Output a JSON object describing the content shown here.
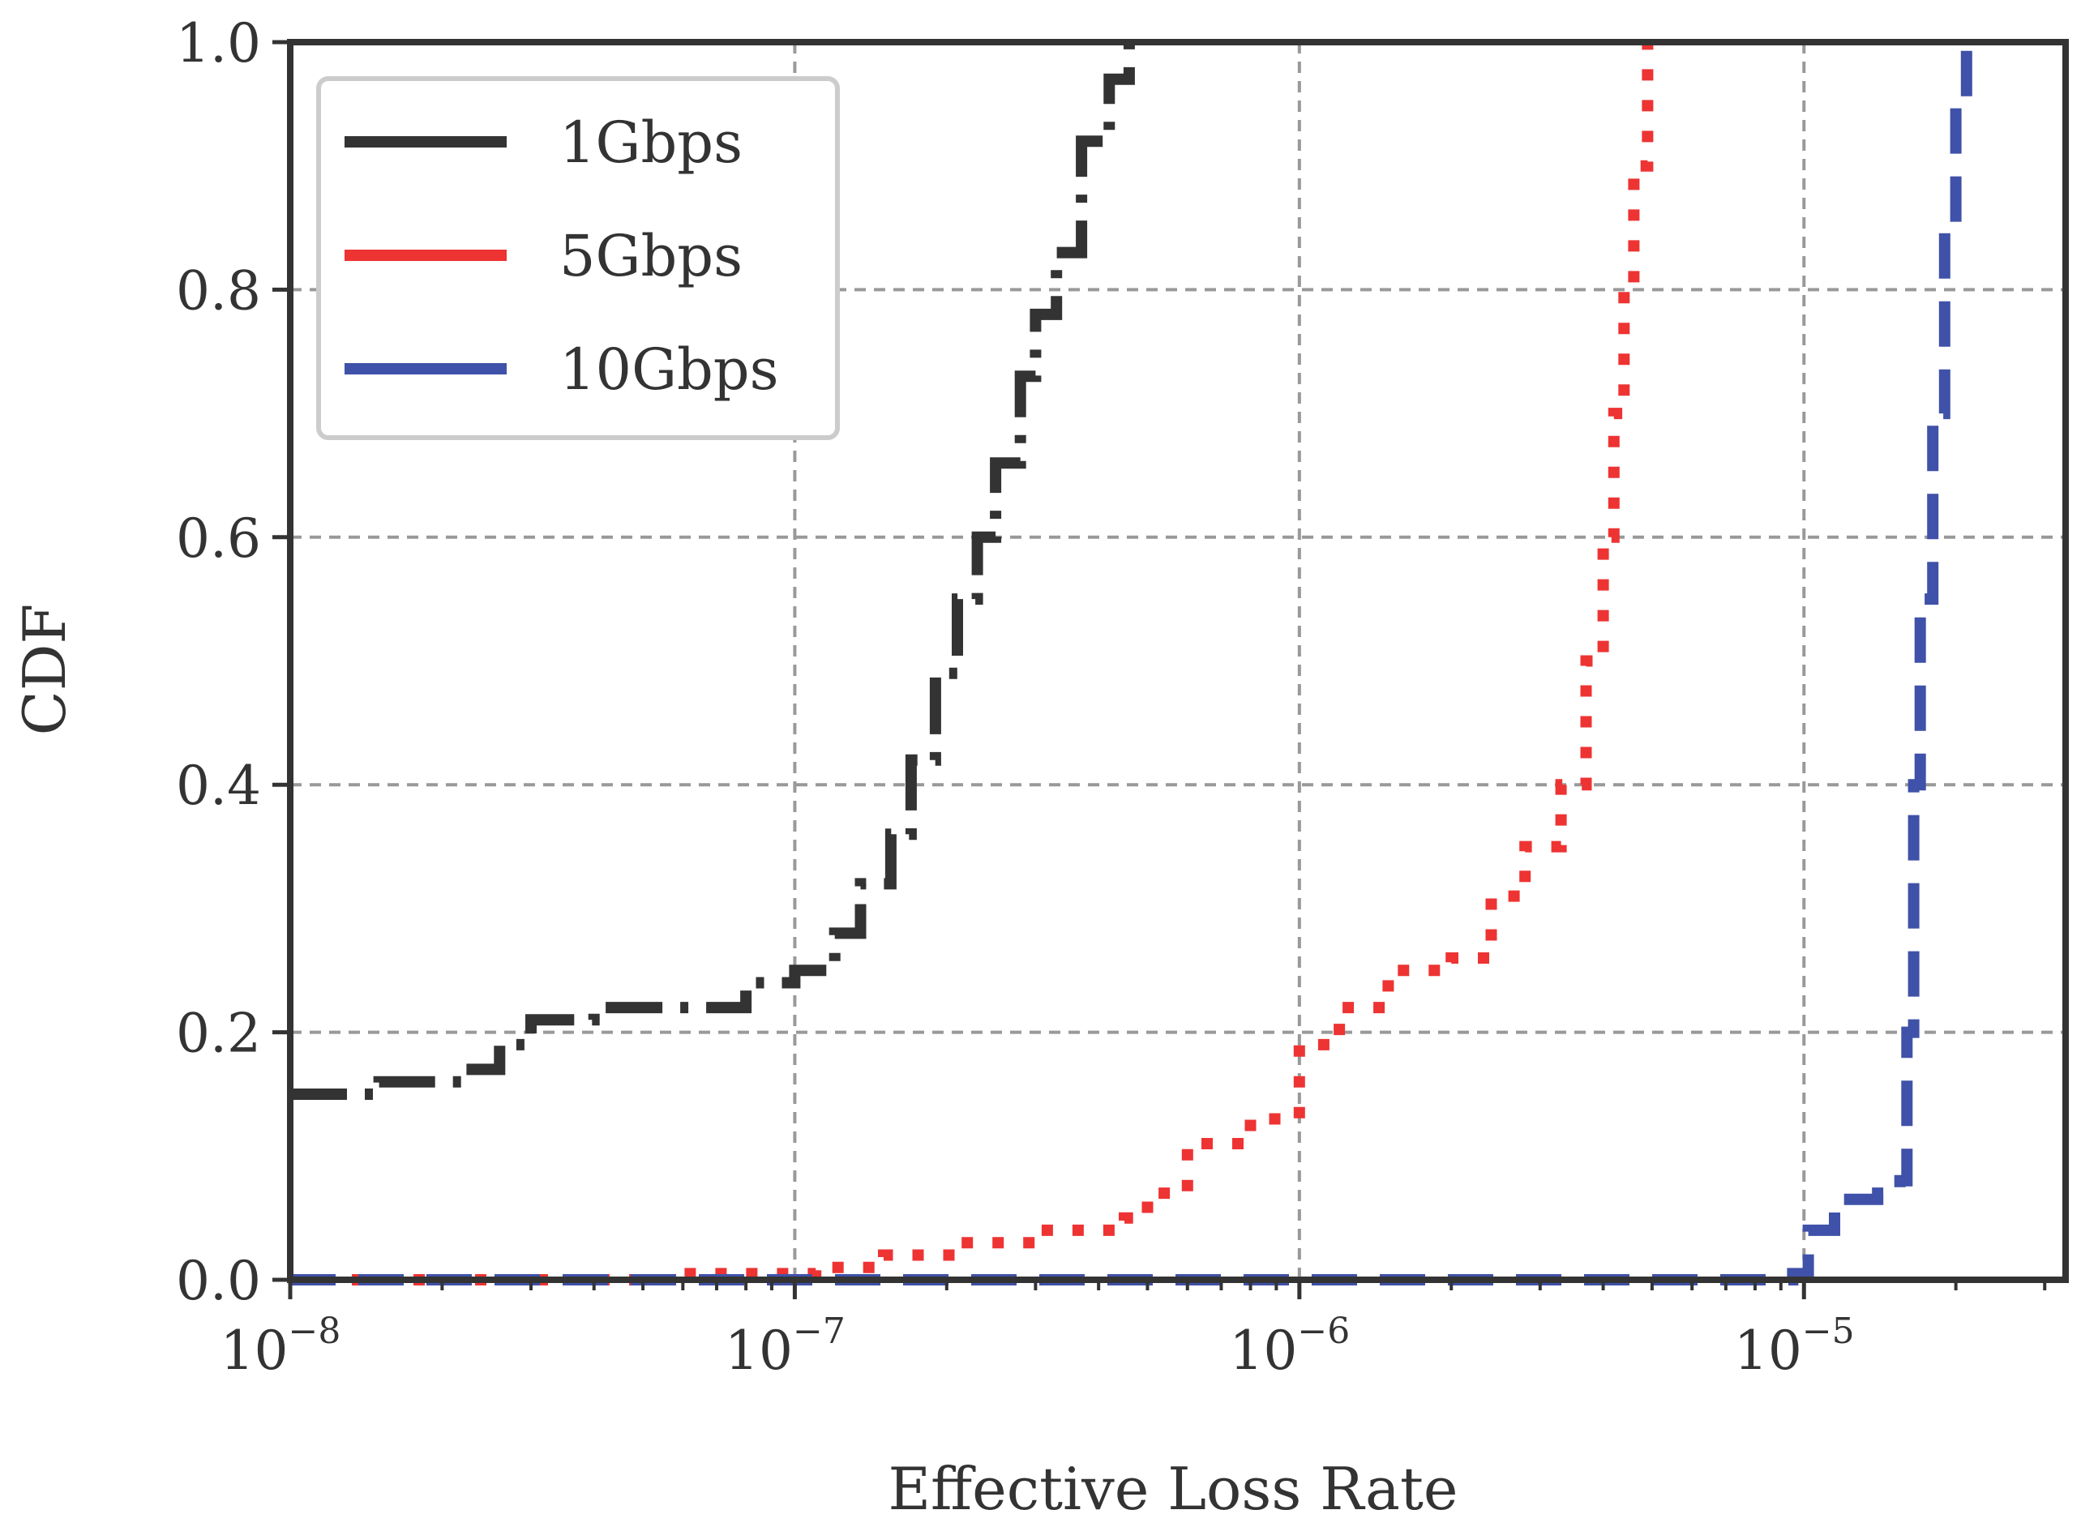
{
  "chart_data": {
    "type": "line",
    "title": "",
    "xlabel": "Effective Loss Rate",
    "ylabel": "CDF",
    "xscale": "log",
    "xlim": [
      1e-08,
      3.3e-05
    ],
    "ylim": [
      0.0,
      1.0
    ],
    "grid": true,
    "legend_position": "top-left",
    "x_ticks": [
      {
        "value": 1e-08,
        "base": "10",
        "exp": "−8"
      },
      {
        "value": 1e-07,
        "base": "10",
        "exp": "−7"
      },
      {
        "value": 1e-06,
        "base": "10",
        "exp": "−6"
      },
      {
        "value": 1e-05,
        "base": "10",
        "exp": "−5"
      }
    ],
    "y_ticks": [
      {
        "value": 0.0,
        "label": "0.0"
      },
      {
        "value": 0.2,
        "label": "0.2"
      },
      {
        "value": 0.4,
        "label": "0.4"
      },
      {
        "value": 0.6,
        "label": "0.6"
      },
      {
        "value": 0.8,
        "label": "0.8"
      },
      {
        "value": 1.0,
        "label": "1.0"
      }
    ],
    "series": [
      {
        "name": "1Gbps",
        "color": "#333333",
        "style": "dashdot",
        "x": [
          1e-08,
          1.5e-08,
          2.2e-08,
          2.6e-08,
          3e-08,
          4e-08,
          6e-08,
          8e-08,
          1e-07,
          1.2e-07,
          1.35e-07,
          1.55e-07,
          1.7e-07,
          1.9e-07,
          2.1e-07,
          2.3e-07,
          2.5e-07,
          2.8e-07,
          3e-07,
          3.3e-07,
          3.7e-07,
          4.2e-07,
          4.6e-07
        ],
        "y": [
          0.15,
          0.16,
          0.17,
          0.19,
          0.21,
          0.22,
          0.22,
          0.24,
          0.25,
          0.28,
          0.32,
          0.36,
          0.42,
          0.49,
          0.55,
          0.6,
          0.66,
          0.73,
          0.78,
          0.83,
          0.92,
          0.97,
          1.0
        ]
      },
      {
        "name": "5Gbps",
        "color": "#ee3333",
        "style": "dotted",
        "x": [
          1e-08,
          6e-08,
          1.1e-07,
          1.5e-07,
          2.1e-07,
          3e-07,
          4.5e-07,
          5e-07,
          6e-07,
          8e-07,
          1e-06,
          1.2e-06,
          1.5e-06,
          2e-06,
          2.4e-06,
          2.8e-06,
          3.3e-06,
          3.7e-06,
          4e-06,
          4.2e-06,
          4.4e-06,
          4.6e-06,
          4.9e-06
        ],
        "y": [
          0.0,
          0.005,
          0.01,
          0.02,
          0.03,
          0.04,
          0.05,
          0.07,
          0.11,
          0.13,
          0.19,
          0.22,
          0.25,
          0.26,
          0.31,
          0.35,
          0.4,
          0.5,
          0.6,
          0.7,
          0.8,
          0.9,
          1.0
        ]
      },
      {
        "name": "10Gbps",
        "color": "#3f51a8",
        "style": "dashed",
        "x": [
          1e-08,
          5e-06,
          9.5e-06,
          1.02e-05,
          1.15e-05,
          1.4e-05,
          1.55e-05,
          1.6e-05,
          1.65e-05,
          1.7e-05,
          1.8e-05,
          1.9e-05,
          2e-05,
          2.1e-05
        ],
        "y": [
          0.0,
          0.0,
          0.005,
          0.04,
          0.065,
          0.07,
          0.08,
          0.2,
          0.4,
          0.55,
          0.7,
          0.85,
          0.95,
          1.0
        ]
      }
    ]
  }
}
